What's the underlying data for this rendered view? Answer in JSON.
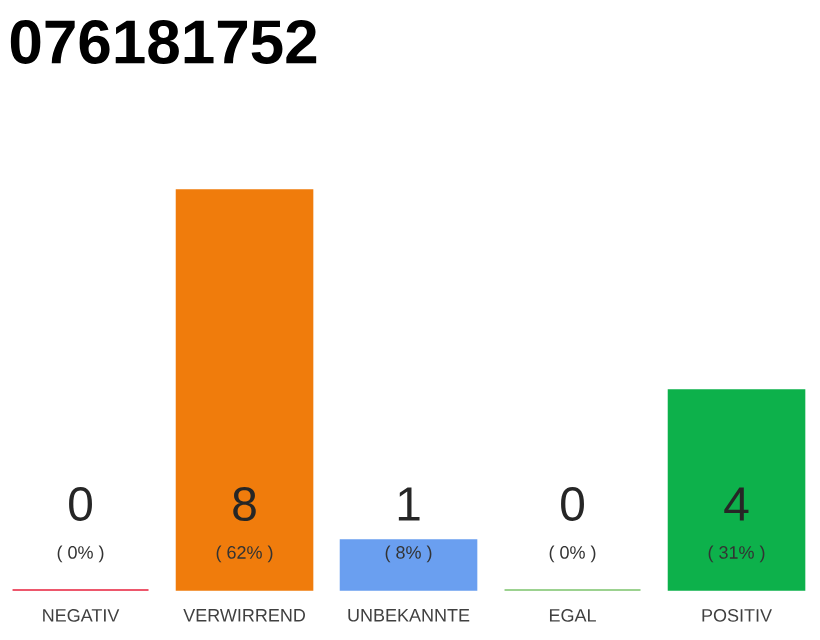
{
  "chart_data": {
    "type": "bar",
    "title": "076181752",
    "categories": [
      "NEGATIV",
      "VERWIRREND",
      "UNBEKANNTE",
      "EGAL",
      "POSITIV"
    ],
    "values": [
      0,
      8,
      1,
      0,
      4
    ],
    "colors": [
      "#e8203c",
      "#f07c0c",
      "#6a9ff0",
      "#7cc46c",
      "#0db14b"
    ],
    "data_labels": true,
    "annotations": [
      "( 0% )",
      "( 62% )",
      "( 8% )",
      "( 0% )",
      "( 31% )"
    ]
  }
}
